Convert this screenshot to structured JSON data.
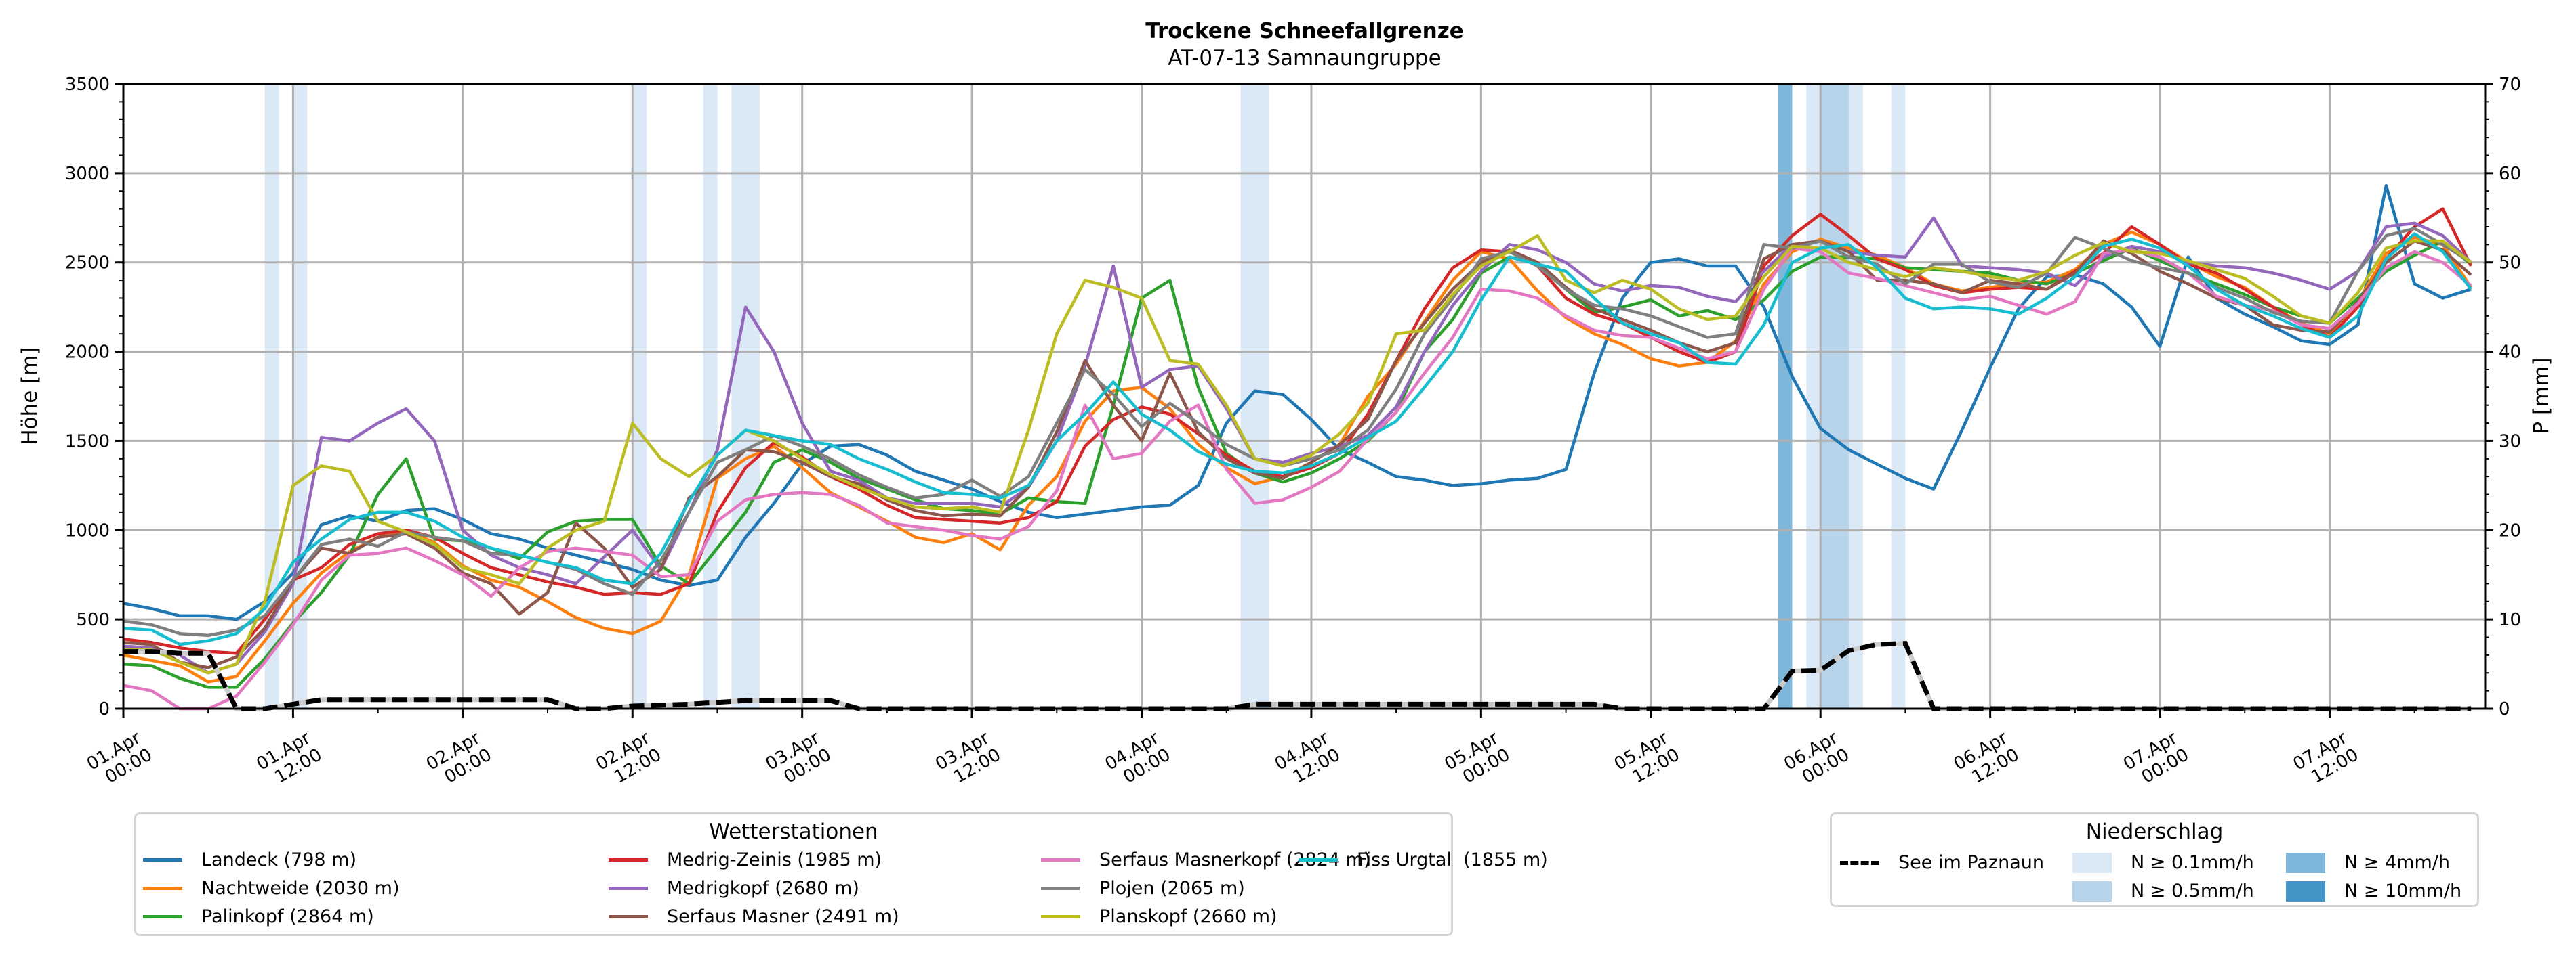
{
  "chart_data": {
    "type": "line",
    "title": "Trockene Schneefallgrenze",
    "subtitle": "AT-07-13 Samnaungruppe",
    "xlabel": "",
    "ylabel": "Höhe [m]",
    "y2label": "P [mm]",
    "ylim": [
      0,
      3500
    ],
    "y2lim": [
      0,
      70
    ],
    "yticks": [
      "0",
      "500",
      "1000",
      "1500",
      "2000",
      "2500",
      "3000",
      "3500"
    ],
    "y2ticks": [
      "0",
      "10",
      "20",
      "30",
      "40",
      "50",
      "60",
      "70"
    ],
    "x_unit": "hours since 01.Apr 00:00",
    "xlim": [
      0,
      167
    ],
    "x_step_hours": 2,
    "xticks": [
      {
        "line1": "01.Apr",
        "line2": "00:00"
      },
      {
        "line1": "01.Apr",
        "line2": "12:00"
      },
      {
        "line1": "02.Apr",
        "line2": "00:00"
      },
      {
        "line1": "02.Apr",
        "line2": "12:00"
      },
      {
        "line1": "03.Apr",
        "line2": "00:00"
      },
      {
        "line1": "03.Apr",
        "line2": "12:00"
      },
      {
        "line1": "04.Apr",
        "line2": "00:00"
      },
      {
        "line1": "04.Apr",
        "line2": "12:00"
      },
      {
        "line1": "05.Apr",
        "line2": "00:00"
      },
      {
        "line1": "05.Apr",
        "line2": "12:00"
      },
      {
        "line1": "06.Apr",
        "line2": "00:00"
      },
      {
        "line1": "06.Apr",
        "line2": "12:00"
      },
      {
        "line1": "07.Apr",
        "line2": "00:00"
      },
      {
        "line1": "07.Apr",
        "line2": "12:00"
      }
    ],
    "grid": true,
    "legend_title": "Wetterstationen",
    "legend_placement": "bottom-left",
    "series": [
      {
        "name": "Landeck (798 m)",
        "color": "#1f77b4",
        "values": [
          590,
          560,
          520,
          520,
          500,
          600,
          760,
          1030,
          1080,
          1050,
          1110,
          1120,
          1060,
          980,
          950,
          900,
          860,
          820,
          780,
          720,
          690,
          720,
          960,
          1150,
          1370,
          1470,
          1480,
          1420,
          1330,
          1280,
          1230,
          1160,
          1100,
          1070,
          1090,
          1110,
          1130,
          1140,
          1250,
          1600,
          1780,
          1760,
          1620,
          1450,
          1380,
          1300,
          1280,
          1250,
          1260,
          1280,
          1290,
          1340,
          1880,
          2300,
          2500,
          2520,
          2480,
          2480,
          2250,
          1860,
          1570,
          1450,
          1370,
          1290,
          1230,
          1560,
          1910,
          2240,
          2420,
          2430,
          2380,
          2250,
          2030,
          2530,
          2300,
          2210,
          2140,
          2060,
          2040,
          2150,
          2930,
          2380,
          2300,
          2350
        ]
      },
      {
        "name": "Nachtweide (2030 m)",
        "color": "#ff7f0e",
        "values": [
          300,
          270,
          240,
          150,
          180,
          380,
          590,
          760,
          880,
          960,
          1000,
          930,
          800,
          720,
          680,
          600,
          510,
          450,
          420,
          490,
          750,
          1290,
          1400,
          1470,
          1350,
          1210,
          1130,
          1050,
          960,
          930,
          980,
          890,
          1140,
          1300,
          1610,
          1780,
          1800,
          1680,
          1480,
          1350,
          1260,
          1300,
          1380,
          1480,
          1750,
          1930,
          2170,
          2400,
          2560,
          2520,
          2340,
          2190,
          2100,
          2040,
          1960,
          1920,
          1940,
          2060,
          2380,
          2560,
          2630,
          2580,
          2540,
          2470,
          2380,
          2340,
          2360,
          2380,
          2390,
          2460,
          2600,
          2670,
          2600,
          2500,
          2420,
          2360,
          2250,
          2160,
          2100,
          2280,
          2550,
          2640,
          2600,
          2360
        ]
      },
      {
        "name": "Palinkopf (2864 m)",
        "color": "#2ca02c",
        "values": [
          250,
          240,
          170,
          120,
          120,
          280,
          480,
          650,
          860,
          1200,
          1400,
          950,
          940,
          900,
          840,
          990,
          1050,
          1060,
          1060,
          800,
          700,
          900,
          1100,
          1380,
          1450,
          1380,
          1290,
          1230,
          1170,
          1120,
          1110,
          1090,
          1180,
          1160,
          1150,
          1700,
          2300,
          2400,
          1800,
          1430,
          1320,
          1270,
          1320,
          1400,
          1500,
          1660,
          2000,
          2180,
          2440,
          2530,
          2500,
          2350,
          2220,
          2250,
          2290,
          2200,
          2230,
          2180,
          2290,
          2450,
          2530,
          2530,
          2520,
          2470,
          2460,
          2450,
          2440,
          2400,
          2380,
          2440,
          2510,
          2580,
          2510,
          2440,
          2380,
          2320,
          2250,
          2200,
          2160,
          2300,
          2450,
          2540,
          2620,
          2490
        ]
      },
      {
        "name": "Medrig-Zeinis (1985 m)",
        "color": "#d62728",
        "values": [
          390,
          370,
          340,
          320,
          310,
          500,
          720,
          790,
          920,
          980,
          1000,
          960,
          870,
          790,
          750,
          710,
          680,
          640,
          650,
          640,
          700,
          1100,
          1350,
          1490,
          1410,
          1300,
          1230,
          1140,
          1070,
          1060,
          1050,
          1040,
          1070,
          1160,
          1470,
          1620,
          1690,
          1650,
          1540,
          1420,
          1330,
          1300,
          1350,
          1430,
          1650,
          1950,
          2240,
          2470,
          2570,
          2560,
          2480,
          2300,
          2210,
          2160,
          2080,
          2000,
          1940,
          2000,
          2480,
          2650,
          2770,
          2650,
          2520,
          2460,
          2370,
          2330,
          2350,
          2360,
          2350,
          2450,
          2550,
          2700,
          2600,
          2490,
          2440,
          2350,
          2250,
          2150,
          2080,
          2250,
          2520,
          2700,
          2800,
          2480
        ]
      },
      {
        "name": "Medrigkopf (2680 m)",
        "color": "#9467bd",
        "values": [
          350,
          340,
          300,
          200,
          250,
          430,
          700,
          1520,
          1500,
          1600,
          1680,
          1500,
          1000,
          860,
          790,
          750,
          700,
          850,
          1000,
          780,
          1100,
          1450,
          2250,
          2000,
          1600,
          1330,
          1280,
          1180,
          1150,
          1150,
          1150,
          1130,
          1240,
          1500,
          1920,
          2480,
          1800,
          1900,
          1920,
          1680,
          1400,
          1380,
          1430,
          1470,
          1530,
          1690,
          2000,
          2260,
          2450,
          2600,
          2570,
          2500,
          2380,
          2340,
          2370,
          2360,
          2310,
          2280,
          2450,
          2600,
          2620,
          2560,
          2540,
          2530,
          2750,
          2480,
          2470,
          2460,
          2440,
          2370,
          2530,
          2590,
          2560,
          2500,
          2480,
          2470,
          2440,
          2400,
          2350,
          2450,
          2700,
          2720,
          2650,
          2500
        ]
      },
      {
        "name": "Serfaus Masner (2491 m)",
        "color": "#8c564b",
        "values": [
          370,
          360,
          260,
          230,
          290,
          450,
          720,
          900,
          870,
          960,
          980,
          900,
          760,
          700,
          530,
          650,
          1040,
          900,
          680,
          780,
          1180,
          1300,
          1450,
          1440,
          1380,
          1300,
          1260,
          1170,
          1110,
          1080,
          1090,
          1080,
          1240,
          1550,
          1950,
          1700,
          1500,
          1880,
          1550,
          1400,
          1320,
          1290,
          1380,
          1480,
          1620,
          1950,
          2160,
          2350,
          2500,
          2570,
          2500,
          2360,
          2240,
          2180,
          2120,
          2050,
          2000,
          2050,
          2520,
          2600,
          2620,
          2560,
          2400,
          2400,
          2380,
          2330,
          2400,
          2380,
          2350,
          2440,
          2620,
          2550,
          2450,
          2380,
          2300,
          2260,
          2150,
          2120,
          2110,
          2280,
          2500,
          2620,
          2570,
          2430
        ]
      },
      {
        "name": "Serfaus Masnerkopf (2824 m)",
        "color": "#e377c2",
        "values": [
          130,
          100,
          0,
          0,
          70,
          260,
          470,
          720,
          860,
          870,
          900,
          830,
          750,
          630,
          790,
          880,
          900,
          880,
          860,
          740,
          750,
          1050,
          1170,
          1200,
          1210,
          1200,
          1140,
          1040,
          1020,
          1000,
          970,
          950,
          1020,
          1220,
          1700,
          1400,
          1430,
          1610,
          1700,
          1340,
          1150,
          1170,
          1240,
          1330,
          1510,
          1660,
          1880,
          2080,
          2350,
          2340,
          2300,
          2200,
          2120,
          2090,
          2080,
          2020,
          1960,
          2000,
          2350,
          2580,
          2560,
          2440,
          2410,
          2370,
          2330,
          2290,
          2310,
          2260,
          2210,
          2280,
          2550,
          2570,
          2530,
          2440,
          2310,
          2260,
          2230,
          2150,
          2130,
          2270,
          2470,
          2560,
          2500,
          2370
        ]
      },
      {
        "name": "Plojen (2065 m)",
        "color": "#7f7f7f",
        "values": [
          490,
          470,
          420,
          410,
          440,
          520,
          720,
          920,
          950,
          910,
          990,
          960,
          940,
          870,
          860,
          820,
          780,
          700,
          640,
          830,
          1100,
          1380,
          1450,
          1530,
          1470,
          1400,
          1310,
          1240,
          1180,
          1200,
          1280,
          1190,
          1300,
          1600,
          1900,
          1760,
          1580,
          1710,
          1600,
          1480,
          1400,
          1360,
          1400,
          1450,
          1560,
          1790,
          2100,
          2300,
          2520,
          2560,
          2480,
          2350,
          2260,
          2240,
          2200,
          2140,
          2080,
          2100,
          2600,
          2580,
          2620,
          2530,
          2490,
          2380,
          2490,
          2490,
          2390,
          2360,
          2440,
          2640,
          2580,
          2510,
          2470,
          2440,
          2360,
          2300,
          2220,
          2170,
          2160,
          2450,
          2650,
          2690,
          2600,
          2500
        ]
      },
      {
        "name": "Planskopf (2660 m)",
        "color": "#bcbd22",
        "values": [
          330,
          330,
          260,
          200,
          250,
          600,
          1250,
          1360,
          1330,
          1050,
          990,
          920,
          790,
          750,
          700,
          900,
          1000,
          1050,
          1600,
          1400,
          1300,
          1420,
          1560,
          1500,
          1400,
          1310,
          1240,
          1180,
          1130,
          1120,
          1130,
          1100,
          1560,
          2100,
          2400,
          2360,
          2300,
          1950,
          1930,
          1700,
          1400,
          1360,
          1420,
          1540,
          1710,
          2100,
          2120,
          2320,
          2480,
          2560,
          2650,
          2400,
          2330,
          2400,
          2350,
          2240,
          2180,
          2200,
          2420,
          2590,
          2580,
          2500,
          2460,
          2420,
          2470,
          2450,
          2420,
          2400,
          2450,
          2540,
          2610,
          2560,
          2550,
          2510,
          2460,
          2410,
          2310,
          2200,
          2160,
          2330,
          2580,
          2620,
          2620,
          2500
        ]
      },
      {
        "name": "Fiss Urgtal  (1855 m)",
        "color": "#17becf",
        "values": [
          450,
          440,
          360,
          380,
          420,
          560,
          820,
          950,
          1060,
          1100,
          1100,
          1050,
          960,
          900,
          860,
          820,
          790,
          720,
          700,
          870,
          1160,
          1420,
          1560,
          1530,
          1500,
          1480,
          1400,
          1340,
          1270,
          1210,
          1200,
          1180,
          1250,
          1500,
          1650,
          1830,
          1650,
          1560,
          1440,
          1370,
          1330,
          1320,
          1360,
          1430,
          1520,
          1610,
          1800,
          2000,
          2290,
          2530,
          2490,
          2450,
          2300,
          2160,
          2100,
          2050,
          1940,
          1930,
          2150,
          2500,
          2580,
          2600,
          2470,
          2300,
          2240,
          2250,
          2240,
          2210,
          2300,
          2420,
          2590,
          2630,
          2580,
          2480,
          2350,
          2260,
          2200,
          2130,
          2080,
          2200,
          2520,
          2660,
          2560,
          2350
        ]
      }
    ],
    "dashed_series": {
      "name": "See im Paznaun",
      "axis": "right",
      "unit": "mm",
      "color": "#000000",
      "values": [
        6.4,
        6.4,
        6.2,
        6.2,
        0,
        0,
        0.5,
        1.0,
        1.0,
        1.0,
        1.0,
        1.0,
        1.0,
        1.0,
        1.0,
        1.0,
        0,
        0,
        0.3,
        0.4,
        0.5,
        0.7,
        0.9,
        0.9,
        0.9,
        0.9,
        0,
        0,
        0,
        0,
        0,
        0,
        0,
        0,
        0,
        0,
        0,
        0,
        0,
        0,
        0.5,
        0.5,
        0.5,
        0.5,
        0.5,
        0.5,
        0.5,
        0.5,
        0.5,
        0.5,
        0.5,
        0.5,
        0.5,
        0,
        0,
        0,
        0,
        0,
        0,
        4.2,
        4.3,
        6.5,
        7.2,
        7.3,
        0,
        0,
        0,
        0,
        0,
        0,
        0,
        0,
        0,
        0,
        0,
        0,
        0,
        0,
        0,
        0,
        0,
        0,
        0,
        0
      ]
    },
    "precip_legend_title": "Niederschlag",
    "precip_bands": [
      {
        "start": 10,
        "end": 11,
        "level": "N ≥ 0.1mm/h"
      },
      {
        "start": 12,
        "end": 13,
        "level": "N ≥ 0.1mm/h"
      },
      {
        "start": 36,
        "end": 37,
        "level": "N ≥ 0.1mm/h"
      },
      {
        "start": 41,
        "end": 42,
        "level": "N ≥ 0.1mm/h"
      },
      {
        "start": 43,
        "end": 45,
        "level": "N ≥ 0.1mm/h"
      },
      {
        "start": 79,
        "end": 81,
        "level": "N ≥ 0.1mm/h"
      },
      {
        "start": 117,
        "end": 118,
        "level": "N ≥ 4mm/h"
      },
      {
        "start": 119,
        "end": 120,
        "level": "N ≥ 0.1mm/h"
      },
      {
        "start": 120,
        "end": 122,
        "level": "N ≥ 0.5mm/h"
      },
      {
        "start": 122,
        "end": 123,
        "level": "N ≥ 0.1mm/h"
      },
      {
        "start": 125,
        "end": 126,
        "level": "N ≥ 0.1mm/h"
      }
    ],
    "precip_levels": [
      {
        "label": "N ≥ 0.1mm/h",
        "color": "#dbe8f5"
      },
      {
        "label": "N ≥ 0.5mm/h",
        "color": "#b8d4ea"
      },
      {
        "label": "N ≥ 4mm/h",
        "color": "#7fb7db"
      },
      {
        "label": "N ≥ 10mm/h",
        "color": "#4594c8"
      }
    ]
  }
}
